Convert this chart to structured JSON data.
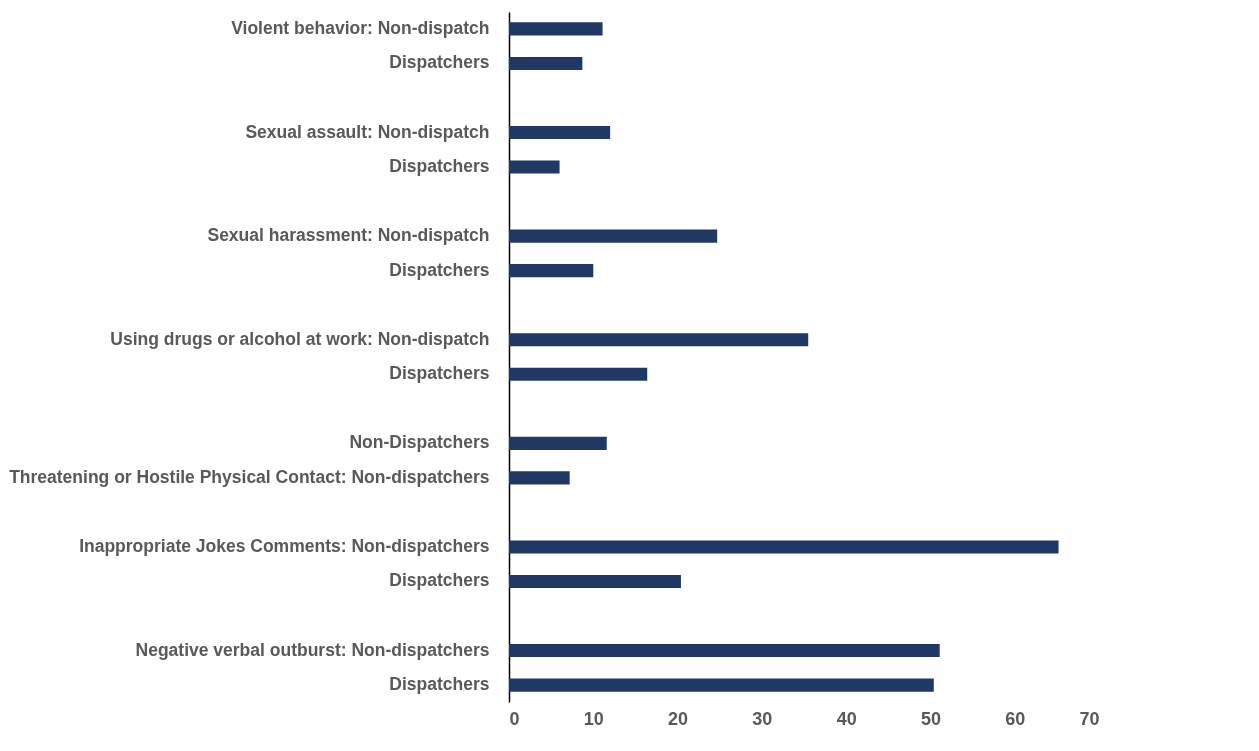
{
  "chart_data": {
    "type": "bar",
    "orientation": "horizontal",
    "categories": [
      "Violent behavior: Non-dispatch",
      "Dispatchers",
      null,
      "Sexual assault: Non-dispatch",
      "Dispatchers",
      null,
      "Sexual harassment: Non-dispatch",
      "Dispatchers",
      null,
      "Using drugs or alcohol at work: Non-dispatch",
      "Dispatchers",
      null,
      "Non-Dispatchers",
      "Threatening or Hostile Physical Contact: Non-dispatchers",
      null,
      "Inappropriate Jokes Comments: Non-dispatchers",
      "Dispatchers",
      null,
      "Negative verbal outburst: Non-dispatchers",
      "Dispatchers"
    ],
    "values": [
      11.1,
      8.7,
      null,
      12.0,
      6.0,
      null,
      24.7,
      10.0,
      null,
      35.5,
      16.4,
      null,
      11.6,
      7.2,
      null,
      65.2,
      20.4,
      null,
      51.1,
      50.4
    ],
    "color": "#203864",
    "xlim": [
      0,
      70
    ],
    "xticks": [
      0,
      10,
      20,
      30,
      40,
      50,
      60,
      70
    ],
    "grid": false
  }
}
